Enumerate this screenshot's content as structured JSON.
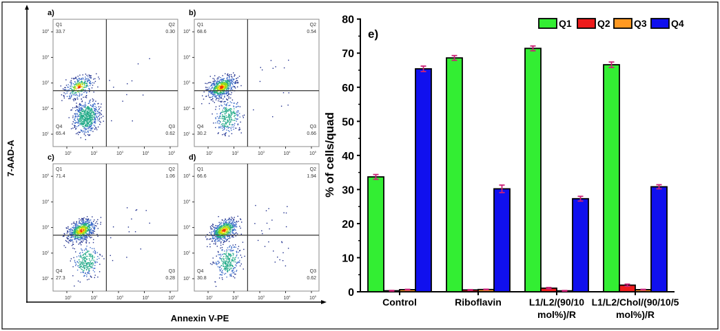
{
  "chart_data": [
    {
      "type": "scatter",
      "subtype": "flow-cytometry-quadrant",
      "xlabel": "Annexin V-PE",
      "ylabel": "7-AAD-A",
      "x_scale": "log",
      "y_scale": "log",
      "tick_labels": [
        "10",
        "10",
        "10",
        "10",
        "10"
      ],
      "tick_exponents": [
        "1",
        "2",
        "3",
        "4",
        "5"
      ],
      "panels": [
        {
          "label": "a)",
          "quadrants": {
            "Q1": "33.7",
            "Q2": "0.30",
            "Q3": "0.62",
            "Q4": "65.4"
          }
        },
        {
          "label": "b)",
          "quadrants": {
            "Q1": "68.6",
            "Q2": "0.54",
            "Q3": "0.66",
            "Q4": "30.2"
          }
        },
        {
          "label": "c)",
          "quadrants": {
            "Q1": "71.4",
            "Q2": "1.06",
            "Q3": "0.28",
            "Q4": "27.3"
          }
        },
        {
          "label": "d)",
          "quadrants": {
            "Q1": "66.6",
            "Q2": "1.94",
            "Q3": "0.62",
            "Q4": "30.8"
          }
        }
      ],
      "quadrant_names": [
        "Q1",
        "Q2",
        "Q3",
        "Q4"
      ]
    },
    {
      "type": "bar",
      "title": "e)",
      "ylabel": "% of cells/quad",
      "xlabel": "",
      "ylim": [
        0,
        80
      ],
      "yticks": [
        "0",
        "10",
        "20",
        "30",
        "40",
        "50",
        "60",
        "70",
        "80"
      ],
      "categories": [
        [
          "Control"
        ],
        [
          "Riboflavin"
        ],
        [
          "L1/L2/(90/10",
          "mol%)/R"
        ],
        [
          "L1/L2/Chol/(90/10/5",
          "mol%)/R"
        ]
      ],
      "legend_position": "top-right",
      "series": [
        {
          "name": "Q1",
          "color": "#33ee33",
          "values": [
            33.7,
            68.6,
            71.4,
            66.6
          ],
          "errors": [
            0.7,
            0.7,
            0.7,
            0.8
          ]
        },
        {
          "name": "Q2",
          "color": "#ee1c1c",
          "values": [
            0.3,
            0.54,
            1.06,
            1.94
          ],
          "errors": [
            0.1,
            0.1,
            0.2,
            0.3
          ]
        },
        {
          "name": "Q3",
          "color": "#ff9922",
          "values": [
            0.62,
            0.66,
            0.28,
            0.62
          ],
          "errors": [
            0.1,
            0.1,
            0.1,
            0.1
          ]
        },
        {
          "name": "Q4",
          "color": "#1010ee",
          "values": [
            65.4,
            30.2,
            27.3,
            30.8
          ],
          "errors": [
            0.8,
            1.1,
            0.7,
            0.6
          ]
        }
      ],
      "error_bar_color": "#cc2277"
    }
  ]
}
